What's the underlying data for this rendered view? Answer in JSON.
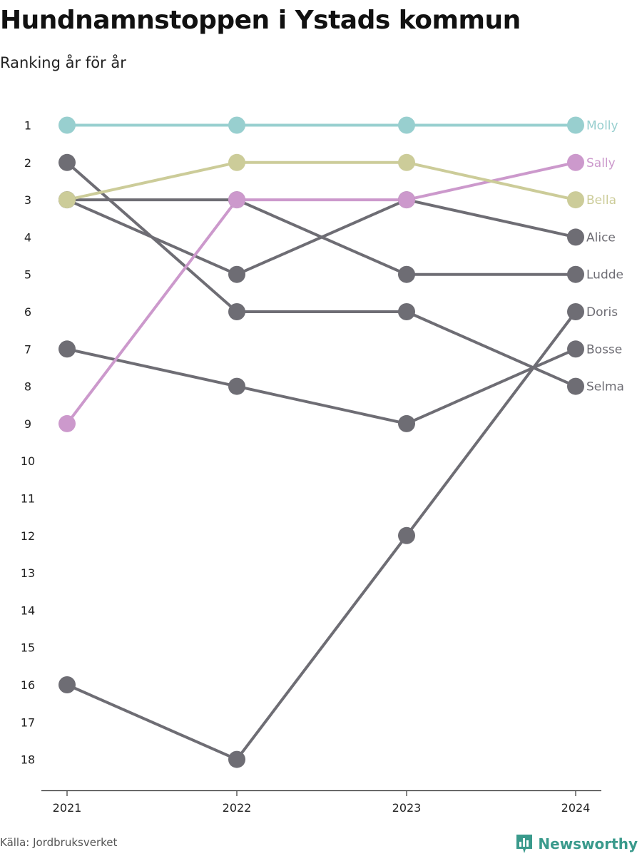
{
  "title": "Hundnamnstoppen i Ystads kommun",
  "subtitle": "Ranking år för år",
  "source": "Källa: Jordbruksverket",
  "brand": {
    "name": "Newsworthy",
    "icon": "newsworthy-logo-icon",
    "color": "#3a9a8c"
  },
  "colors": {
    "Molly": "#98cfcf",
    "Sally": "#cc99cc",
    "Bella": "#cccc99",
    "other": "#6e6d74"
  },
  "chart_data": {
    "type": "line",
    "subtype": "bump",
    "x": [
      "2021",
      "2022",
      "2023",
      "2024"
    ],
    "yticks": [
      1,
      2,
      3,
      4,
      5,
      6,
      7,
      8,
      9,
      10,
      11,
      12,
      13,
      14,
      15,
      16,
      17,
      18
    ],
    "ylim": [
      1,
      18
    ],
    "y_inverted": true,
    "series": [
      {
        "name": "Molly",
        "values": [
          1,
          1,
          1,
          1
        ],
        "highlight": true
      },
      {
        "name": "Sally",
        "values": [
          9,
          3,
          3,
          2
        ],
        "highlight": true
      },
      {
        "name": "Bella",
        "values": [
          3,
          2,
          2,
          3
        ],
        "highlight": true
      },
      {
        "name": "Alice",
        "values": [
          3,
          5,
          3,
          4
        ],
        "highlight": false
      },
      {
        "name": "Ludde",
        "values": [
          3,
          3,
          5,
          5
        ],
        "highlight": false
      },
      {
        "name": "Doris",
        "values": [
          16,
          18,
          12,
          6
        ],
        "highlight": false
      },
      {
        "name": "Bosse",
        "values": [
          7,
          8,
          9,
          7
        ],
        "highlight": false
      },
      {
        "name": "Selma",
        "values": [
          2,
          6,
          6,
          8
        ],
        "highlight": false
      }
    ]
  }
}
